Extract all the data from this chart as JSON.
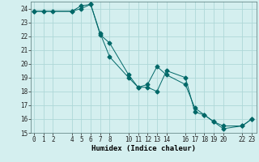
{
  "xlabel": "Humidex (Indice chaleur)",
  "background_color": "#d4efef",
  "grid_color": "#aed8d8",
  "line_color": "#006868",
  "line1_x": [
    0,
    1,
    2,
    4,
    5,
    6,
    7,
    8,
    10,
    11,
    12,
    13,
    14,
    16,
    17,
    18,
    19,
    20,
    22,
    23
  ],
  "line1_y": [
    23.8,
    23.8,
    23.8,
    23.8,
    24.2,
    24.3,
    22.1,
    21.5,
    19.2,
    18.3,
    18.5,
    19.8,
    19.2,
    18.5,
    16.8,
    16.3,
    15.8,
    15.3,
    15.5,
    16.0
  ],
  "line2_x": [
    0,
    4,
    5,
    6,
    7,
    8,
    10,
    11,
    12,
    13,
    14,
    16,
    17,
    18,
    19,
    20,
    22,
    23
  ],
  "line2_y": [
    23.8,
    23.8,
    24.0,
    24.3,
    22.2,
    20.5,
    19.0,
    18.3,
    18.3,
    18.0,
    19.5,
    19.0,
    16.5,
    16.3,
    15.8,
    15.5,
    15.5,
    16.0
  ],
  "xlim": [
    -0.3,
    23.5
  ],
  "ylim": [
    15,
    24.5
  ],
  "xticks": [
    0,
    1,
    2,
    4,
    5,
    6,
    7,
    8,
    10,
    11,
    12,
    13,
    14,
    16,
    17,
    18,
    19,
    20,
    22,
    23
  ],
  "yticks": [
    15,
    16,
    17,
    18,
    19,
    20,
    21,
    22,
    23,
    24
  ],
  "markersize": 2.5,
  "linewidth": 0.7,
  "tick_fontsize": 5.5,
  "xlabel_fontsize": 6.5
}
